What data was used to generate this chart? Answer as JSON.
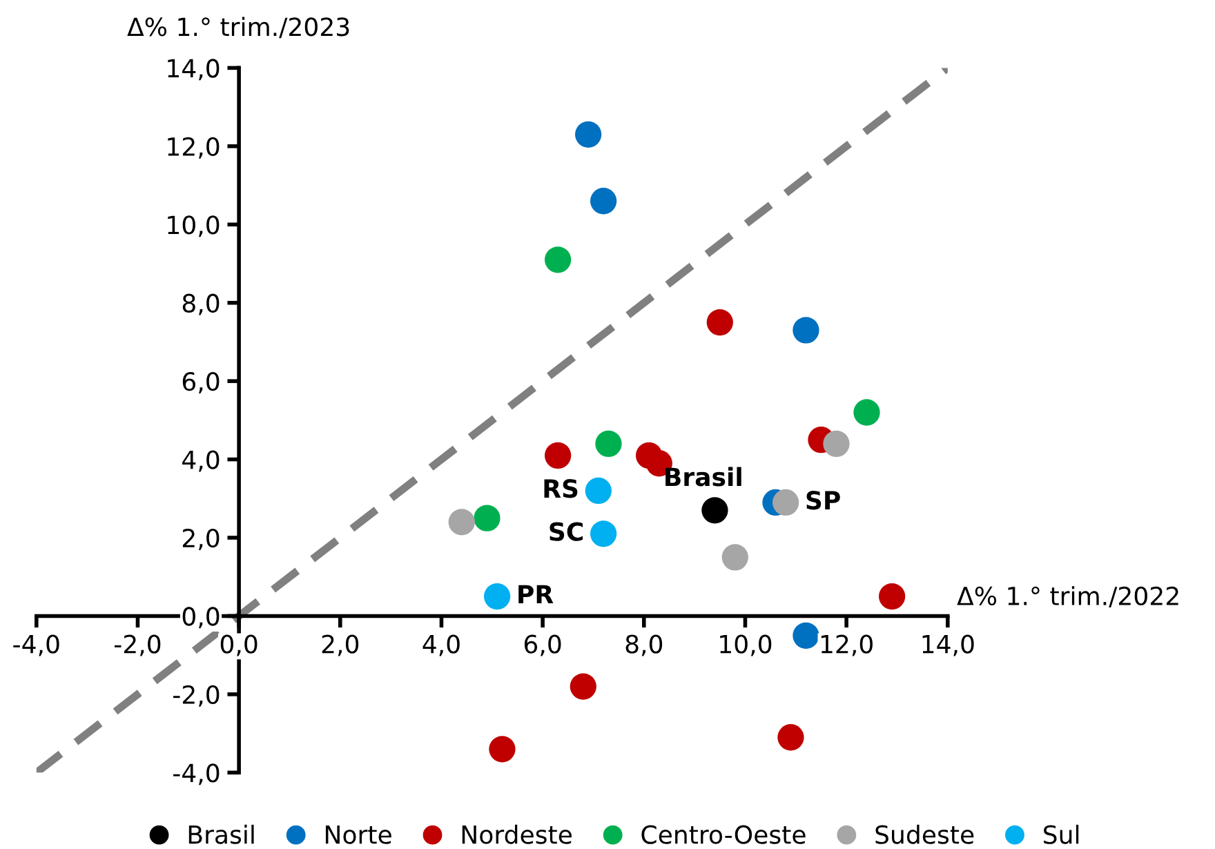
{
  "chart_data": {
    "type": "scatter",
    "xlabel": "Δ% 1.° trim./2022",
    "ylabel": "Δ% 1.° trim./2023",
    "xlim": [
      -4,
      14
    ],
    "ylim": [
      -4,
      14
    ],
    "xticks": [
      {
        "value": -4,
        "label": "-4,0"
      },
      {
        "value": -2,
        "label": "-2,0"
      },
      {
        "value": 0,
        "label": "0,0"
      },
      {
        "value": 2,
        "label": "2,0"
      },
      {
        "value": 4,
        "label": "4,0"
      },
      {
        "value": 6,
        "label": "6,0"
      },
      {
        "value": 8,
        "label": "8,0"
      },
      {
        "value": 10,
        "label": "10,0"
      },
      {
        "value": 12,
        "label": "12,0"
      },
      {
        "value": 14,
        "label": "14,0"
      }
    ],
    "yticks": [
      {
        "value": -4,
        "label": "-4,0"
      },
      {
        "value": -2,
        "label": "-2,0"
      },
      {
        "value": 0,
        "label": "0,0"
      },
      {
        "value": 2,
        "label": "2,0"
      },
      {
        "value": 4,
        "label": "4,0"
      },
      {
        "value": 6,
        "label": "6,0"
      },
      {
        "value": 8,
        "label": "8,0"
      },
      {
        "value": 10,
        "label": "10,0"
      },
      {
        "value": 12,
        "label": "12,0"
      },
      {
        "value": 14,
        "label": "14,0"
      }
    ],
    "grid": false,
    "legend": "bottom",
    "marker": "circle",
    "series": [
      {
        "name": "Brasil",
        "color": "#000000",
        "x": [
          9.4
        ],
        "values": [
          2.7
        ]
      },
      {
        "name": "Norte",
        "color": "#0070c0",
        "x": [
          6.9,
          7.2,
          11.2,
          10.6,
          11.2
        ],
        "values": [
          12.3,
          10.6,
          7.3,
          2.9,
          -0.5
        ]
      },
      {
        "name": "Nordeste",
        "color": "#c00000",
        "x": [
          9.5,
          6.3,
          8.1,
          8.3,
          11.5,
          12.9,
          6.8,
          5.2,
          10.9
        ],
        "values": [
          7.5,
          4.1,
          4.1,
          3.9,
          4.5,
          0.5,
          -1.8,
          -3.4,
          -3.1
        ]
      },
      {
        "name": "Centro-Oeste",
        "color": "#00b050",
        "x": [
          6.3,
          7.3,
          12.4,
          4.9
        ],
        "values": [
          9.1,
          4.4,
          5.2,
          2.5
        ]
      },
      {
        "name": "Sudeste",
        "color": "#a6a6a6",
        "x": [
          11.8,
          10.8,
          9.8,
          4.4
        ],
        "values": [
          4.4,
          2.9,
          1.5,
          2.4
        ]
      },
      {
        "name": "Sul",
        "color": "#00b0f0",
        "x": [
          7.1,
          7.2,
          5.1
        ],
        "values": [
          3.2,
          2.1,
          0.5
        ]
      },
      {
        "type": "line",
        "color": "#808080",
        "line_style": "dashed",
        "marker": "none",
        "x": [
          -4,
          14
        ],
        "values": [
          -4,
          14
        ]
      }
    ],
    "annotations": [
      {
        "text": "RS",
        "x": 7.1,
        "y": 3.2
      },
      {
        "text": "SC",
        "x": 7.2,
        "y": 2.1
      },
      {
        "text": "PR",
        "x": 5.1,
        "y": 0.5
      },
      {
        "text": "Brasil",
        "x": 9.4,
        "y": 2.7
      },
      {
        "text": "SP",
        "x": 10.8,
        "y": 2.9
      }
    ]
  }
}
